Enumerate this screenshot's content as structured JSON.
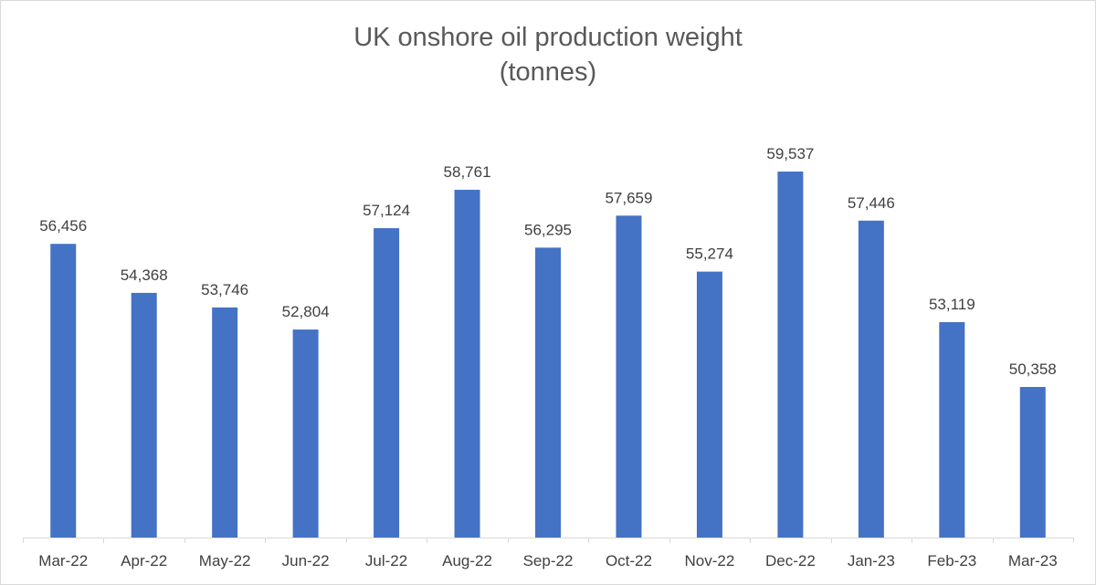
{
  "chart_data": {
    "type": "bar",
    "title_lines": [
      "UK onshore oil production weight",
      "(tonnes)"
    ],
    "categories": [
      "Mar-22",
      "Apr-22",
      "May-22",
      "Jun-22",
      "Jul-22",
      "Aug-22",
      "Sep-22",
      "Oct-22",
      "Nov-22",
      "Dec-22",
      "Jan-23",
      "Feb-23",
      "Mar-23"
    ],
    "values": [
      56456,
      54368,
      53746,
      52804,
      57124,
      58761,
      56295,
      57659,
      55274,
      59537,
      57446,
      53119,
      50358
    ],
    "data_labels": [
      "56,456",
      "54,368",
      "53,746",
      "52,804",
      "57,124",
      "58,761",
      "56,295",
      "57,659",
      "55,274",
      "59,537",
      "57,446",
      "53,119",
      "50,358"
    ],
    "xlabel": "",
    "ylabel": "",
    "grid": false,
    "legend": "none",
    "bar_color": "#4472c4"
  }
}
